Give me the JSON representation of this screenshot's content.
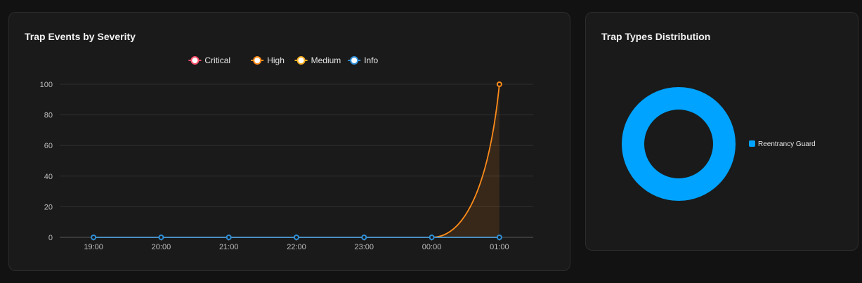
{
  "panels": {
    "severity": {
      "title": "Trap Events by Severity"
    },
    "types": {
      "title": "Trap Types Distribution"
    }
  },
  "chart_data": [
    {
      "type": "line",
      "title": "Trap Events by Severity",
      "x": [
        "19:00",
        "20:00",
        "21:00",
        "22:00",
        "23:00",
        "00:00",
        "01:00"
      ],
      "ylim": [
        0,
        100
      ],
      "yticks": [
        0,
        20,
        40,
        60,
        80,
        100
      ],
      "grid": true,
      "legend_position": "top",
      "series": [
        {
          "name": "Critical",
          "color": "#ff4d6a",
          "values": [
            0,
            0,
            0,
            0,
            0,
            0,
            0
          ]
        },
        {
          "name": "High",
          "color": "#ff8c1a",
          "values": [
            0,
            0,
            0,
            0,
            0,
            0,
            100
          ],
          "fill": true
        },
        {
          "name": "Medium",
          "color": "#ffb020",
          "values": [
            0,
            0,
            0,
            0,
            0,
            0,
            0
          ]
        },
        {
          "name": "Info",
          "color": "#2e8fd8",
          "values": [
            0,
            0,
            0,
            0,
            0,
            0,
            0
          ]
        }
      ]
    },
    {
      "type": "pie",
      "title": "Trap Types Distribution",
      "donut": true,
      "legend_position": "right",
      "slices": [
        {
          "label": "Reentrancy Guard",
          "value": 1,
          "color": "#00a3ff"
        }
      ]
    }
  ]
}
